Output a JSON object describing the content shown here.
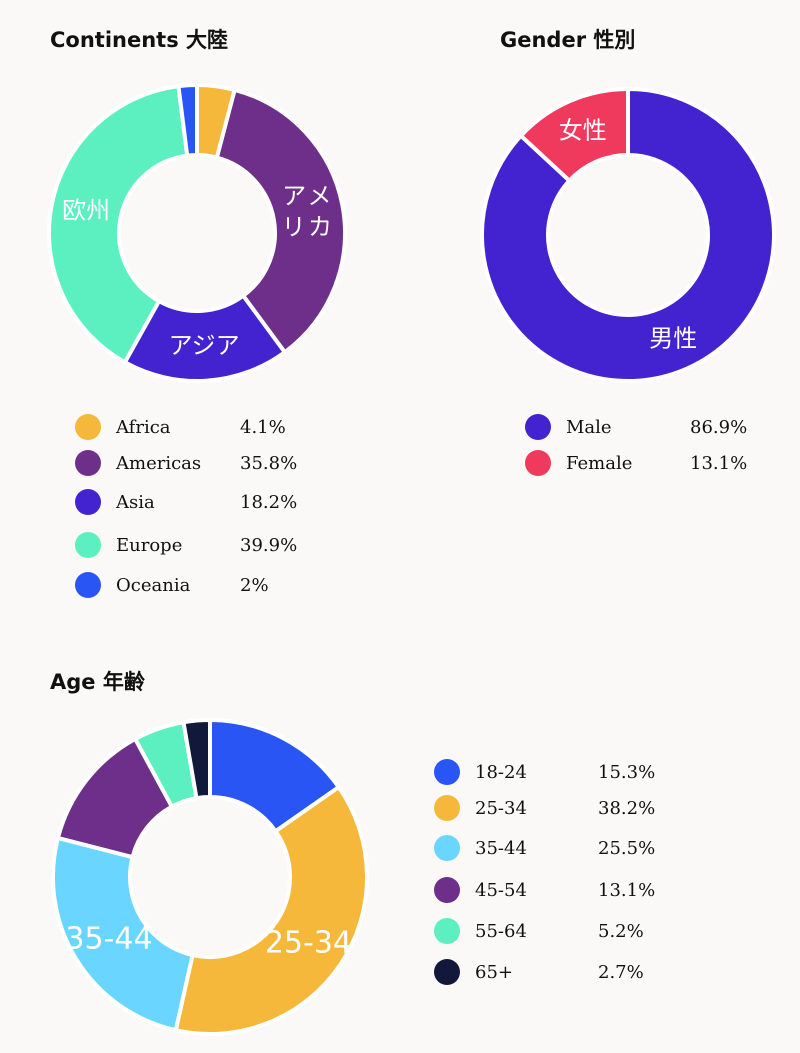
{
  "chart_data": [
    {
      "type": "pie",
      "donut": true,
      "title": "Continents 大陸",
      "categories": [
        "Africa",
        "Americas",
        "Asia",
        "Europe",
        "Oceania"
      ],
      "values": [
        4.1,
        35.8,
        18.2,
        39.9,
        2
      ],
      "value_labels": [
        "4.1%",
        "35.8%",
        "18.2%",
        "39.9%",
        "2%"
      ],
      "slice_labels": [
        "",
        "アメリカ",
        "アジア",
        "欧州",
        ""
      ],
      "colors": [
        "#f5b83a",
        "#6e2f8a",
        "#4322d0",
        "#5cf0c0",
        "#2a55f5"
      ],
      "legend": "bottom"
    },
    {
      "type": "pie",
      "donut": true,
      "title": "Gender 性別",
      "categories": [
        "Male",
        "Female"
      ],
      "values": [
        86.9,
        13.1
      ],
      "value_labels": [
        "86.9%",
        "13.1%"
      ],
      "slice_labels": [
        "男性",
        "女性"
      ],
      "colors": [
        "#4322d0",
        "#ef3a5d"
      ],
      "legend": "bottom"
    },
    {
      "type": "pie",
      "donut": true,
      "title": "Age 年齢",
      "categories": [
        "18-24",
        "25-34",
        "35-44",
        "45-54",
        "55-64",
        "65+"
      ],
      "values": [
        15.3,
        38.2,
        25.5,
        13.1,
        5.2,
        2.7
      ],
      "value_labels": [
        "15.3%",
        "38.2%",
        "25.5%",
        "13.1%",
        "5.2%",
        "2.7%"
      ],
      "slice_labels": [
        "",
        "25-34",
        "35-44",
        "",
        "",
        ""
      ],
      "colors": [
        "#2a55f5",
        "#f5b83a",
        "#6ad5ff",
        "#6e2f8a",
        "#5cf0c0",
        "#12183a"
      ],
      "legend": "right"
    }
  ]
}
